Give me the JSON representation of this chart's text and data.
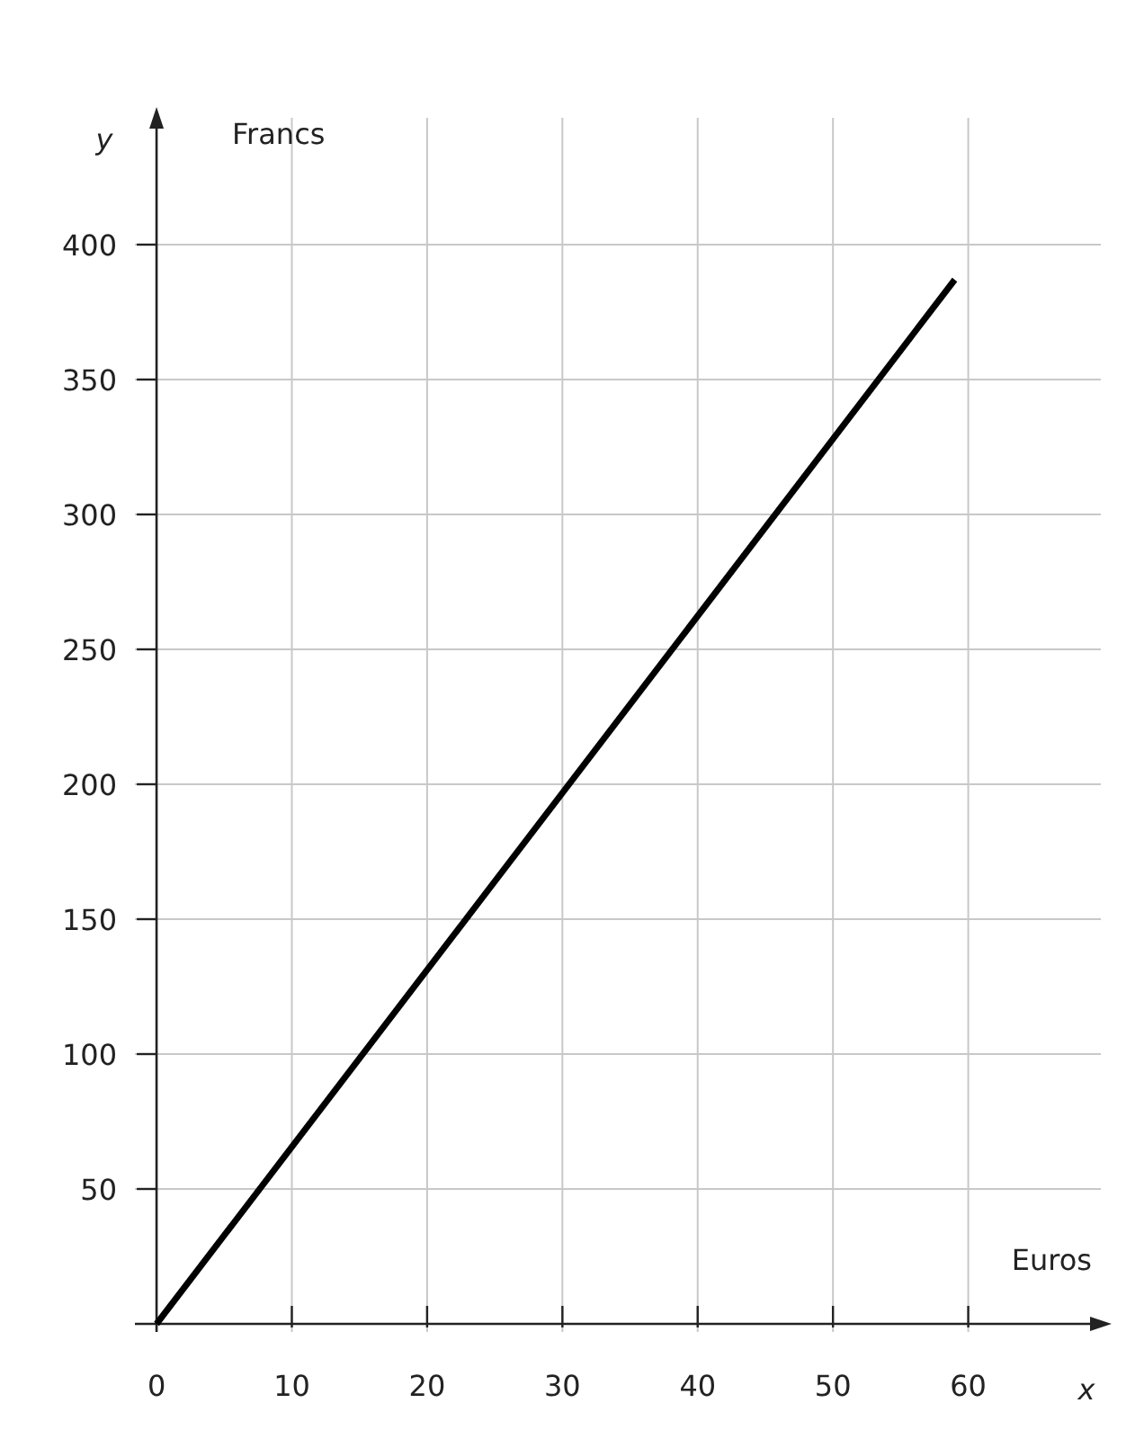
{
  "chart_data": {
    "type": "line",
    "xlabel": "Euros",
    "ylabel": "Francs",
    "annotations": [
      "x",
      "y"
    ],
    "x": [
      0,
      59
    ],
    "series": [
      {
        "color": "#000000",
        "values": [
          0,
          387
        ]
      }
    ],
    "xlim": [
      -1.6,
      69.8
    ],
    "ylim": [
      -3,
      447
    ],
    "xticks": [
      0,
      10,
      20,
      30,
      40,
      50,
      60
    ],
    "yticks": [
      50,
      100,
      150,
      200,
      250,
      300,
      350,
      400
    ],
    "grid": true
  }
}
